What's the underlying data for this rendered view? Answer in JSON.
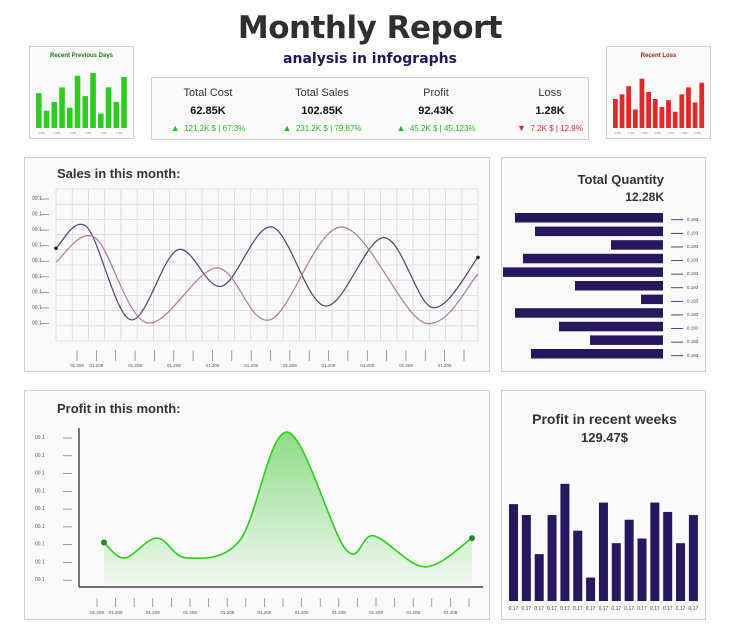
{
  "header": {
    "title": "Monthly Report",
    "subtitle": "analysis in infographs"
  },
  "colors": {
    "accent_navy": "#27175f",
    "profit_green": "#2ecc1f",
    "gain_green": "#2bb52b",
    "loss_red": "#dd2a2a",
    "line_dark": "#4a4670",
    "line_pink": "#b07a9c"
  },
  "kpis": [
    {
      "label": "Total Cost",
      "value": "62.85K",
      "change": "121.2K $ | 67.3%",
      "direction": "up"
    },
    {
      "label": "Total Sales",
      "value": "102.85K",
      "change": "231.2K $ | 79.87%",
      "direction": "up"
    },
    {
      "label": "Profit",
      "value": "92.43K",
      "change": "45.2K $ | 45.123%",
      "direction": "up"
    },
    {
      "label": "Loss",
      "value": "1.28K",
      "change": "7.2K $ | 12.9%",
      "direction": "down"
    }
  ],
  "chart_data": [
    {
      "id": "recent-previous-days",
      "type": "bar",
      "title": "Recent Previous Days",
      "values": [
        60,
        30,
        45,
        70,
        35,
        90,
        55,
        95,
        25,
        70,
        45,
        88
      ],
      "x_tick_label": "1 005",
      "ylim": [
        0,
        100
      ]
    },
    {
      "id": "recent-loss",
      "type": "bar",
      "title": "Recent Loss",
      "values": [
        50,
        58,
        72,
        32,
        85,
        62,
        50,
        36,
        48,
        28,
        58,
        70,
        44,
        78
      ],
      "x_tick_label": "1 005",
      "ylim": [
        0,
        100
      ]
    },
    {
      "id": "sales-this-month",
      "type": "line",
      "title": "Sales in this month:",
      "y_tick_label": "00.1",
      "y_tick_count": 9,
      "x_tick_label": "01.209",
      "x_tick_count": 21,
      "ylim": [
        0,
        10
      ],
      "series": [
        {
          "color": "#4a4670",
          "points": [
            [
              0,
              6.1
            ],
            [
              1.9,
              7.5
            ],
            [
              4.6,
              1.4
            ],
            [
              7.5,
              6.0
            ],
            [
              10.2,
              3.6
            ],
            [
              13.3,
              7.5
            ],
            [
              16.6,
              2.3
            ],
            [
              20.2,
              6.8
            ],
            [
              23.2,
              2.2
            ],
            [
              26,
              5.5
            ]
          ]
        },
        {
          "color": "#b07a9c",
          "points": [
            [
              0,
              5.2
            ],
            [
              2.4,
              6.8
            ],
            [
              5.6,
              1.2
            ],
            [
              9.9,
              4.8
            ],
            [
              13.2,
              1.4
            ],
            [
              17.6,
              7.5
            ],
            [
              22.7,
              1.2
            ],
            [
              26,
              4.4
            ]
          ]
        }
      ]
    },
    {
      "id": "total-quantity",
      "type": "bar",
      "orientation": "horizontal",
      "title": "Total Quantity",
      "total": "12.28K",
      "values": [
        148,
        128,
        52,
        140,
        160,
        88,
        22,
        148,
        104,
        73,
        132
      ],
      "value_label": "0.193",
      "xlim": [
        0,
        160
      ]
    },
    {
      "id": "profit-this-month",
      "type": "area",
      "title": "Profit in this month:",
      "y_tick_label": "00.1",
      "y_tick_count": 9,
      "x_tick_label": "01.209",
      "x_tick_count": 21,
      "ylim": [
        0,
        10
      ],
      "points": [
        [
          0,
          1.2
        ],
        [
          1.1,
          0.5
        ],
        [
          2.8,
          1.4
        ],
        [
          4.4,
          0.5
        ],
        [
          7.2,
          1.3
        ],
        [
          9.7,
          6.2
        ],
        [
          12.8,
          0.9
        ],
        [
          14.3,
          1.5
        ],
        [
          17.0,
          0.1
        ],
        [
          19.5,
          1.4
        ]
      ]
    },
    {
      "id": "profit-recent-weeks",
      "type": "bar",
      "title": "Profit in recent weeks",
      "total": "129.47$",
      "values": [
        62,
        55,
        30,
        55,
        75,
        45,
        15,
        63,
        37,
        52,
        40,
        63,
        57,
        37,
        55
      ],
      "x_tick_label": "0.17",
      "ylim": [
        0,
        80
      ]
    }
  ]
}
